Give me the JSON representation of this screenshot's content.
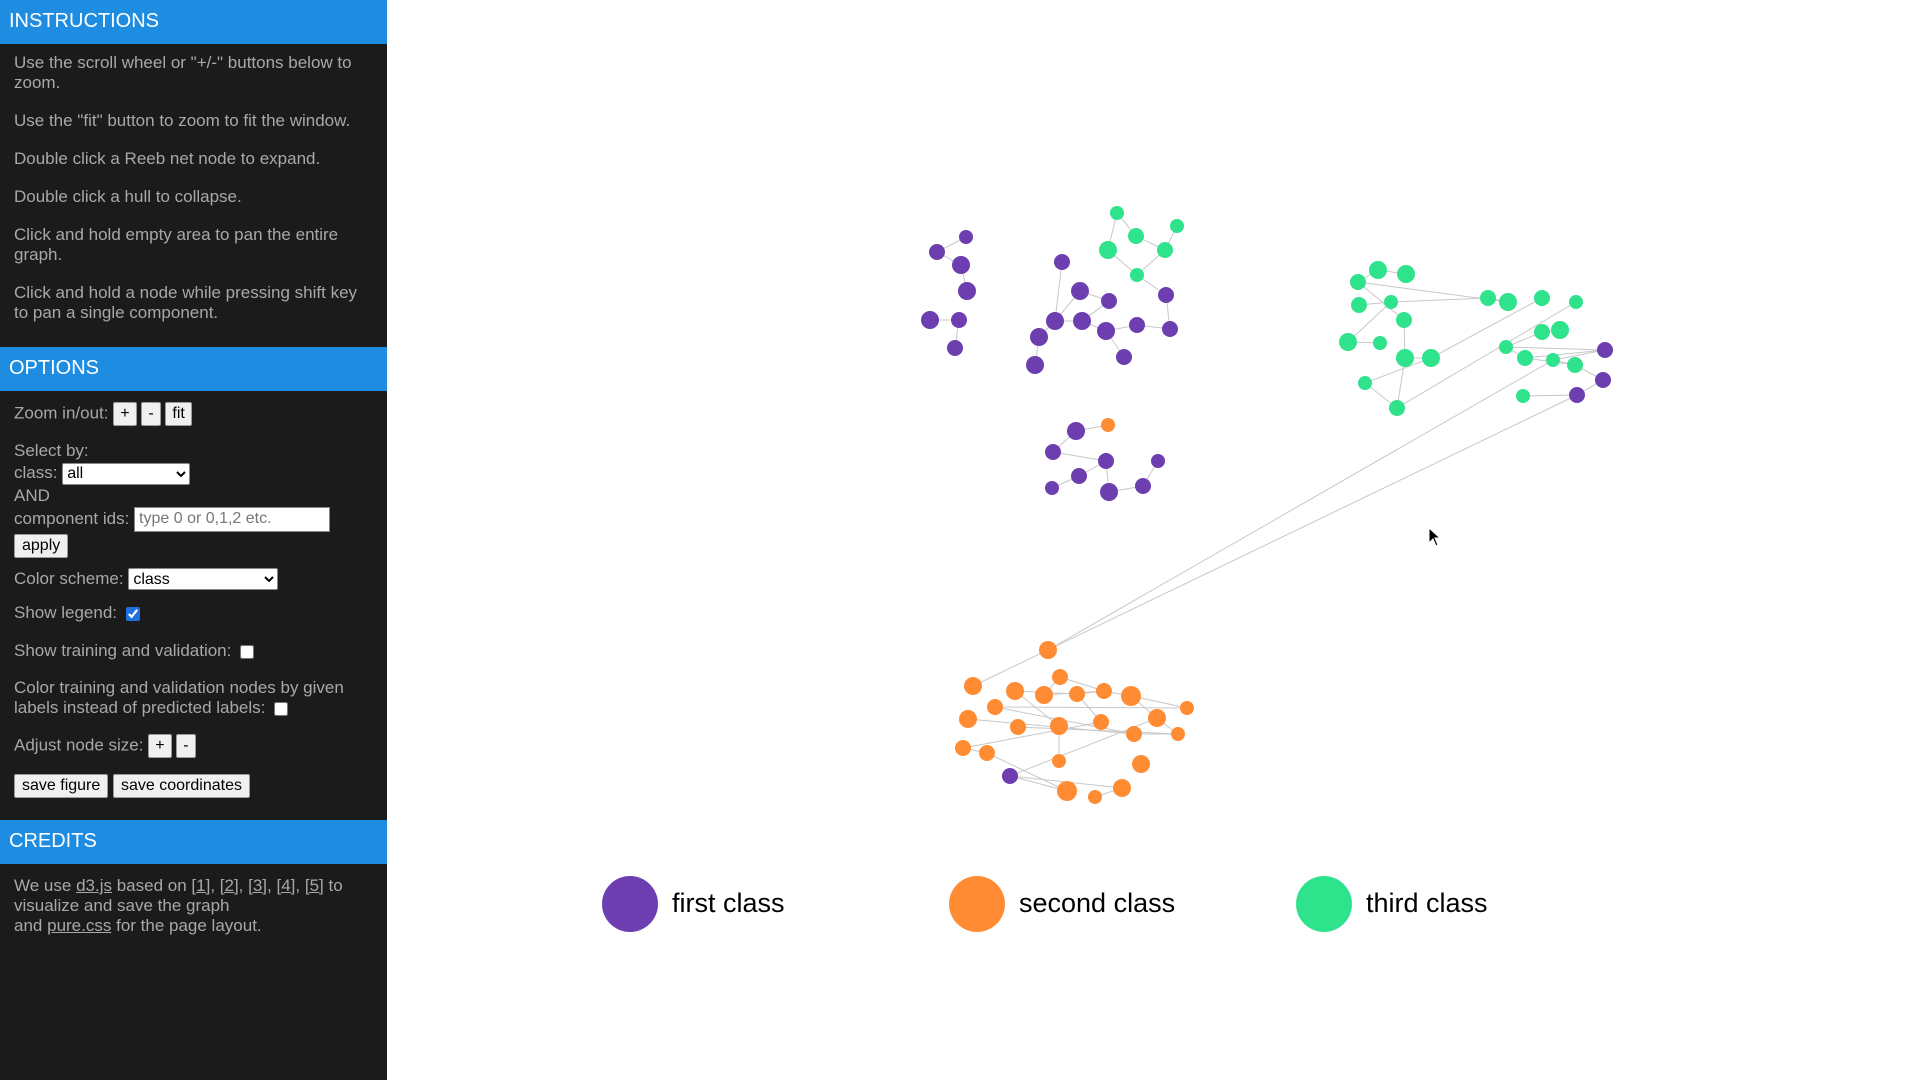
{
  "instructions": {
    "header": "INSTRUCTIONS",
    "items": [
      "Use the scroll wheel or \"+/-\" buttons below to zoom.",
      "Use the \"fit\" button to zoom to fit the window.",
      "Double click a Reeb net node to expand.",
      "Double click a hull to collapse.",
      "Click and hold empty area to pan the entire graph.",
      "Click and hold a node while pressing shift key to pan a single component."
    ]
  },
  "options": {
    "header": "OPTIONS",
    "zoom_label": "Zoom in/out:",
    "zoom_in": "+",
    "zoom_out": "-",
    "fit": "fit",
    "select_by": "Select by:",
    "class_label": "class:",
    "class_value": "all",
    "and_label": "AND",
    "component_label": "component ids:",
    "component_placeholder": "type 0 or 0,1,2 etc.",
    "apply": "apply",
    "color_scheme_label": "Color scheme:",
    "color_scheme_value": "class",
    "show_legend_label": "Show legend:",
    "show_training_label": "Show training and validation:",
    "color_training_label": "Color training and validation nodes by given labels instead of predicted labels:",
    "node_size_label": "Adjust node size:",
    "node_plus": "+",
    "node_minus": "-",
    "save_figure": "save figure",
    "save_coordinates": "save coordinates"
  },
  "credits": {
    "header": "CREDITS",
    "we_use": "We use",
    "d3": "d3.js",
    "based_on": "based on",
    "refs": [
      "[1]",
      "[2]",
      "[3]",
      "[4]",
      "[5]"
    ],
    "to_visualize": "to visualize and save the graph",
    "and": "and",
    "pure": "pure.css",
    "page_layout": "for the page layout."
  },
  "colors": {
    "first": "#6c3eb0",
    "second": "#ff8c33",
    "third": "#2ee38c"
  },
  "legend": [
    {
      "label": "first class",
      "color": "#6c3eb0"
    },
    {
      "label": "second class",
      "color": "#ff8c33"
    },
    {
      "label": "third class",
      "color": "#2ee38c"
    }
  ]
}
